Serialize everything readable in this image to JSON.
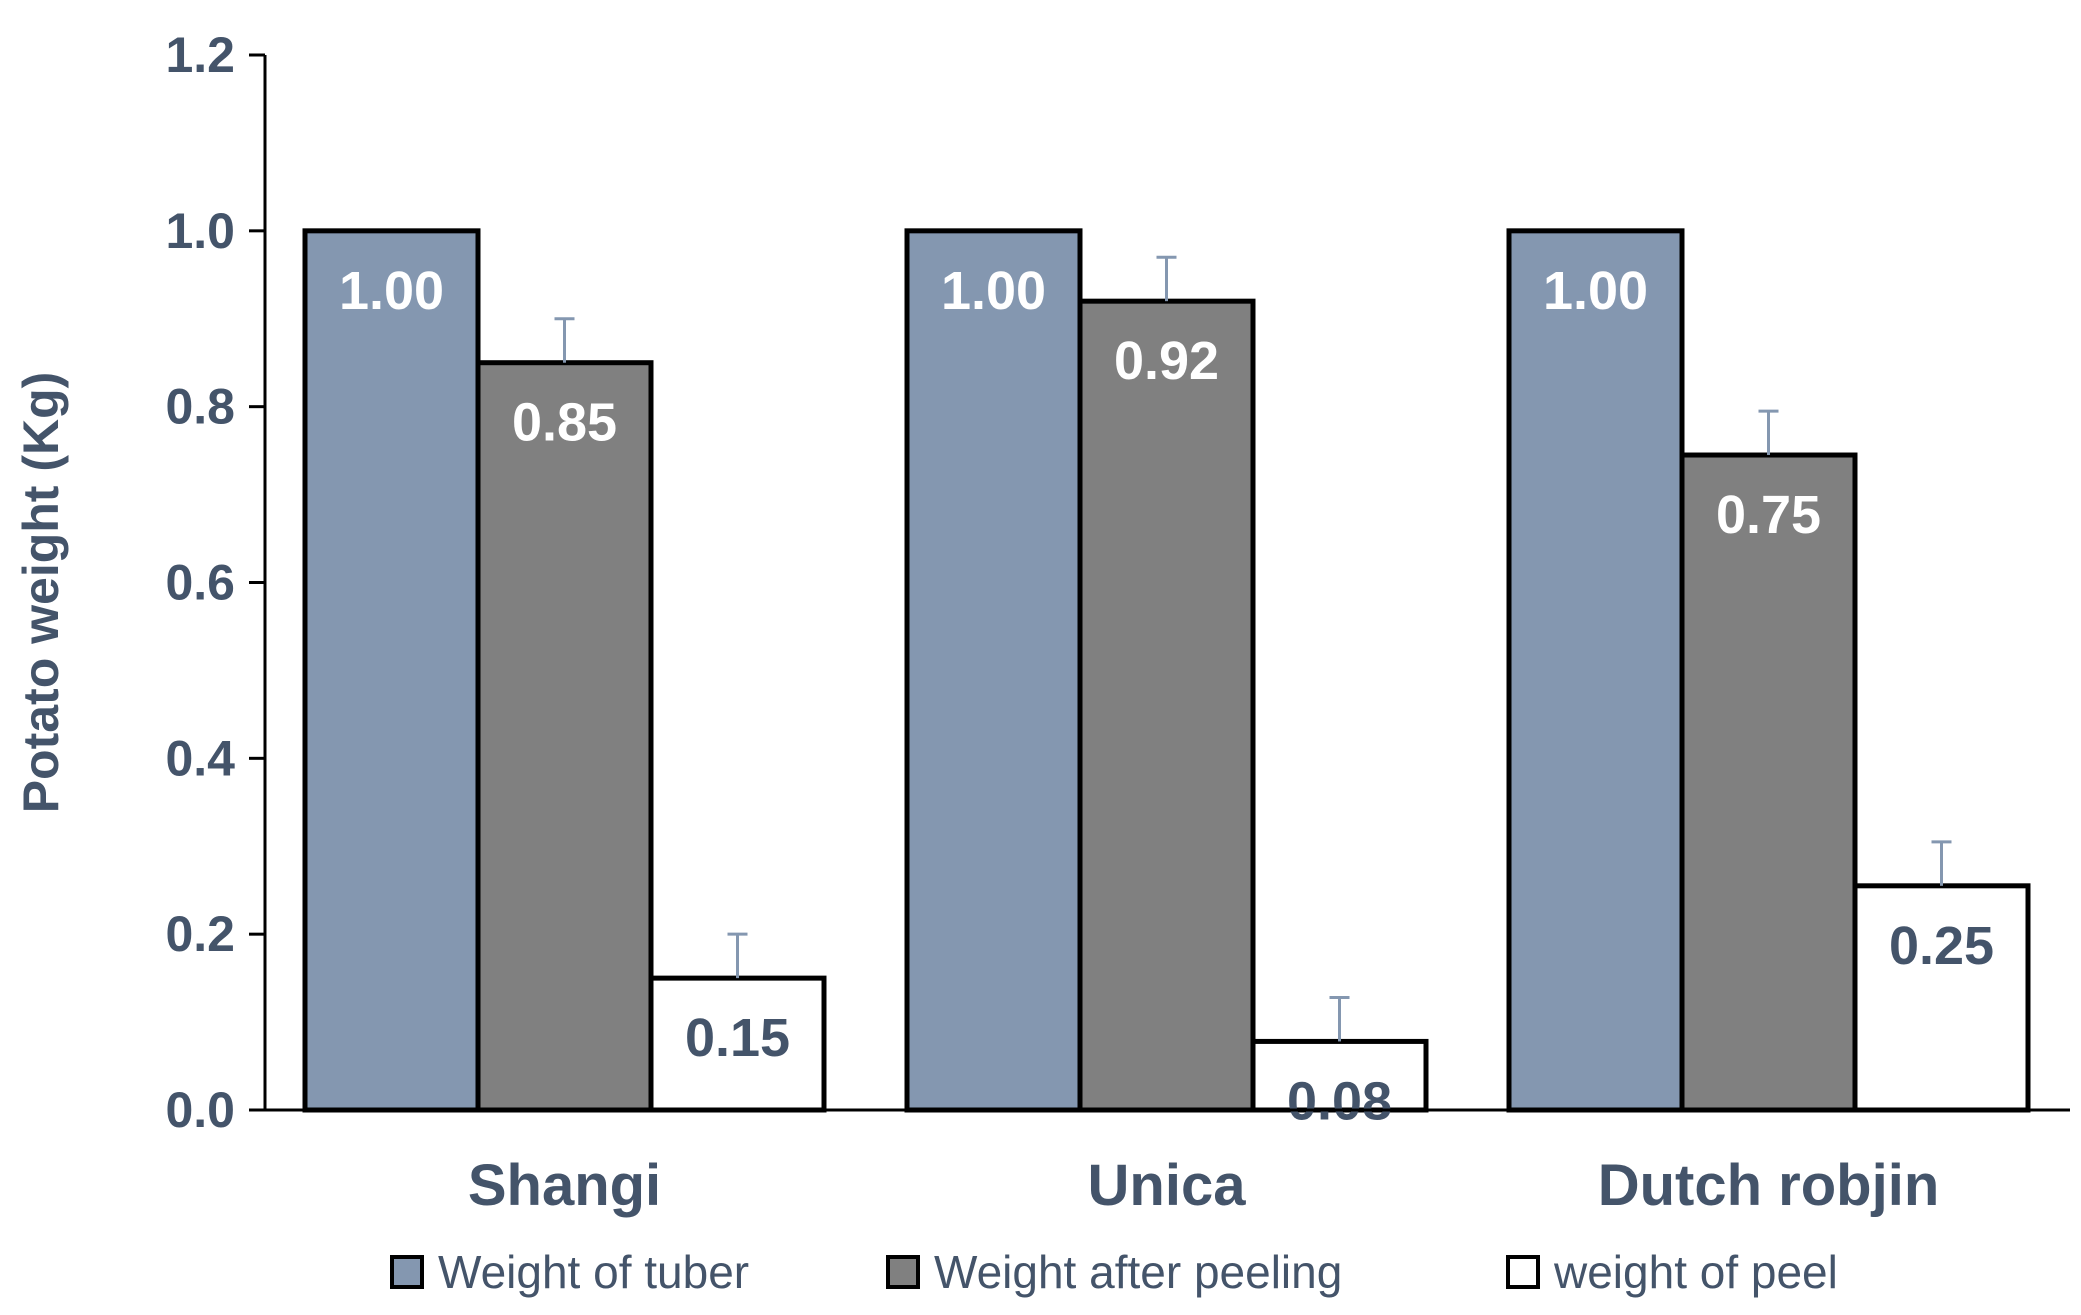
{
  "chart_data": {
    "type": "bar",
    "title": "",
    "xlabel": "",
    "ylabel": "Potato weight (Kg)",
    "ylim": [
      0,
      1.2
    ],
    "yticks": [
      "0.0",
      "0.2",
      "0.4",
      "0.6",
      "0.8",
      "1.0",
      "1.2"
    ],
    "grid": false,
    "legend_position": "bottom",
    "categories": [
      "Shangi",
      "Unica",
      "Dutch robjin"
    ],
    "series": [
      {
        "name": "Weight of tuber",
        "color": "#8497b0",
        "label_color": "#ffffff",
        "values": [
          1.0,
          1.0,
          1.0
        ],
        "errors": [
          0.0,
          0.0,
          0.0
        ],
        "labels": [
          "1.00",
          "1.00",
          "1.00"
        ]
      },
      {
        "name": "Weight after peeling",
        "color": "#808080",
        "label_color": "#ffffff",
        "values": [
          0.85,
          0.92,
          0.745
        ],
        "errors": [
          0.05,
          0.05,
          0.05
        ],
        "labels": [
          "0.85",
          "0.92",
          "0.75"
        ]
      },
      {
        "name": "weight of peel",
        "color": "#ffffff",
        "label_color": "#44546a",
        "values": [
          0.15,
          0.078,
          0.255
        ],
        "errors": [
          0.05,
          0.05,
          0.05
        ],
        "labels": [
          "0.15",
          "0.08",
          "0.25"
        ]
      }
    ]
  }
}
